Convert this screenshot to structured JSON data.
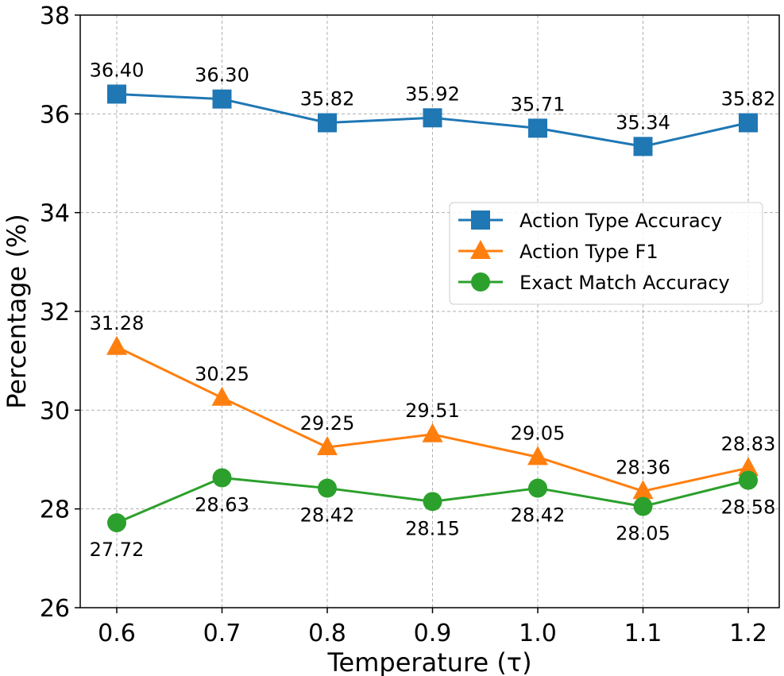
{
  "chart_data": {
    "type": "line",
    "x": [
      0.6,
      0.7,
      0.8,
      0.9,
      1.0,
      1.1,
      1.2
    ],
    "x_tick_labels": [
      "0.6",
      "0.7",
      "0.8",
      "0.9",
      "1.0",
      "1.1",
      "1.2"
    ],
    "xlabel": "Temperature (τ)",
    "ylabel": "Percentage (%)",
    "ylim": [
      26,
      38
    ],
    "y_ticks": [
      26,
      28,
      30,
      32,
      34,
      36,
      38
    ],
    "y_tick_labels": [
      "26",
      "28",
      "30",
      "32",
      "34",
      "36",
      "38"
    ],
    "grid": true,
    "legend_position": "right",
    "series": [
      {
        "name": "Action Type Accuracy",
        "color": "#1f77b4",
        "marker": "square",
        "values": [
          36.4,
          36.3,
          35.82,
          35.92,
          35.71,
          35.34,
          35.82
        ],
        "labels": [
          "36.40",
          "36.30",
          "35.82",
          "35.92",
          "35.71",
          "35.34",
          "35.82"
        ],
        "label_position": "above"
      },
      {
        "name": "Action Type F1",
        "color": "#ff7f0e",
        "marker": "triangle",
        "values": [
          31.28,
          30.25,
          29.25,
          29.51,
          29.05,
          28.36,
          28.83
        ],
        "labels": [
          "31.28",
          "30.25",
          "29.25",
          "29.51",
          "29.05",
          "28.36",
          "28.83"
        ],
        "label_position": "above"
      },
      {
        "name": "Exact Match Accuracy",
        "color": "#2ca02c",
        "marker": "circle",
        "values": [
          27.72,
          28.63,
          28.42,
          28.15,
          28.42,
          28.05,
          28.58
        ],
        "labels": [
          "27.72",
          "28.63",
          "28.42",
          "28.15",
          "28.42",
          "28.05",
          "28.58"
        ],
        "label_position": "below"
      }
    ]
  }
}
